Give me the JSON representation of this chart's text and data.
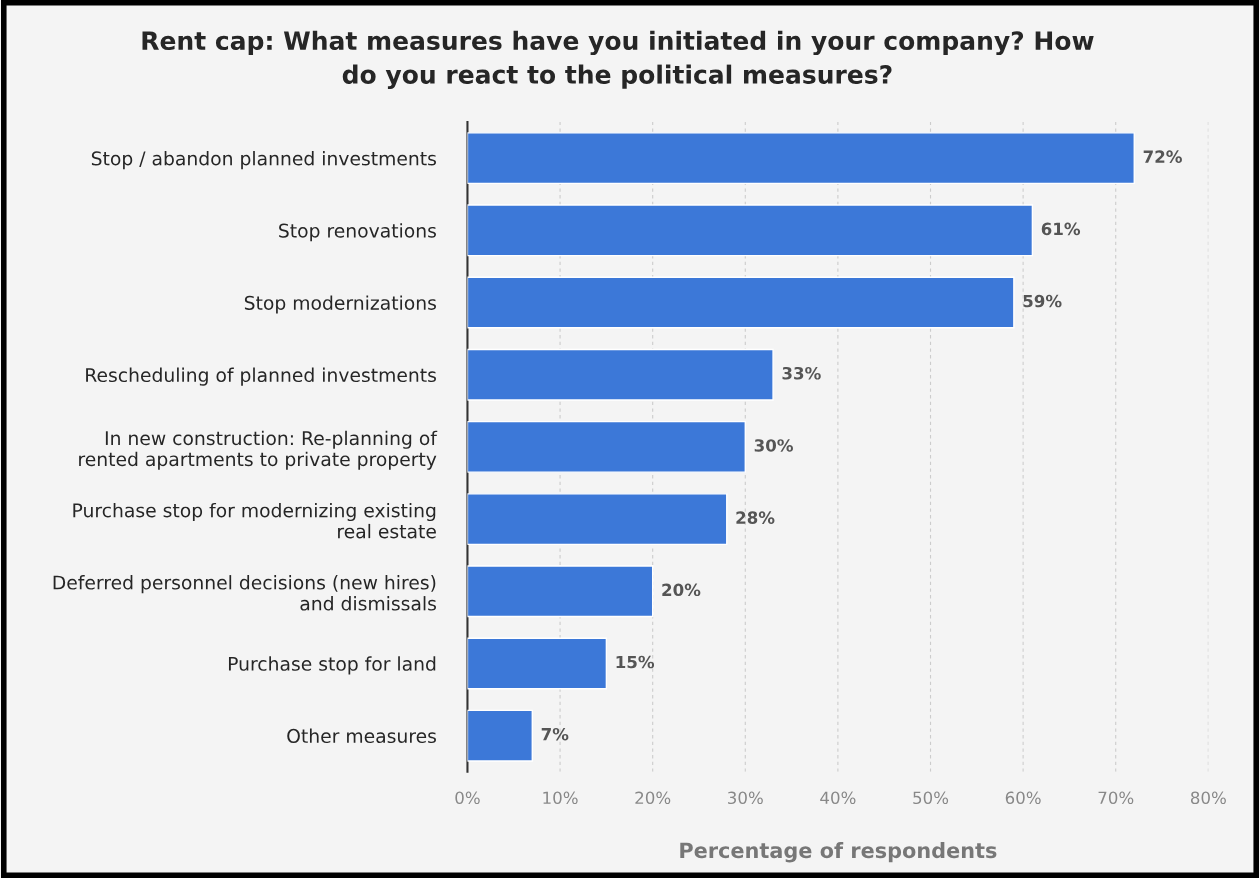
{
  "chart_data": {
    "type": "bar",
    "orientation": "horizontal",
    "title": "Rent cap: What measures have you initiated in your company? How\ndo you react to the political measures?",
    "xlabel": "Percentage of respondents",
    "categories": [
      "Stop / abandon planned investments",
      "Stop renovations",
      "Stop modernizations",
      "Rescheduling of planned investments",
      "In new construction: Re-planning of\nrented apartments to private property",
      "Purchase stop for modernizing existing\nreal estate",
      "Deferred personnel decisions (new hires)\nand dismissals",
      "Purchase stop for land",
      "Other measures"
    ],
    "values": [
      72,
      61,
      59,
      33,
      30,
      28,
      20,
      15,
      7
    ],
    "value_labels": [
      "72%",
      "61%",
      "59%",
      "33%",
      "30%",
      "28%",
      "20%",
      "15%",
      "7%"
    ],
    "color": "#3c78d8",
    "xlim": [
      0,
      80
    ],
    "xticks": [
      {
        "value": 0,
        "label": "0%"
      },
      {
        "value": 10,
        "label": "10%"
      },
      {
        "value": 20,
        "label": "20%"
      },
      {
        "value": 30,
        "label": "30%"
      },
      {
        "value": 40,
        "label": "40%"
      },
      {
        "value": 50,
        "label": "50%"
      },
      {
        "value": 60,
        "label": "60%"
      },
      {
        "value": 70,
        "label": "70%"
      },
      {
        "value": 80,
        "label": "80%"
      }
    ],
    "grid": "x",
    "legend": false
  }
}
